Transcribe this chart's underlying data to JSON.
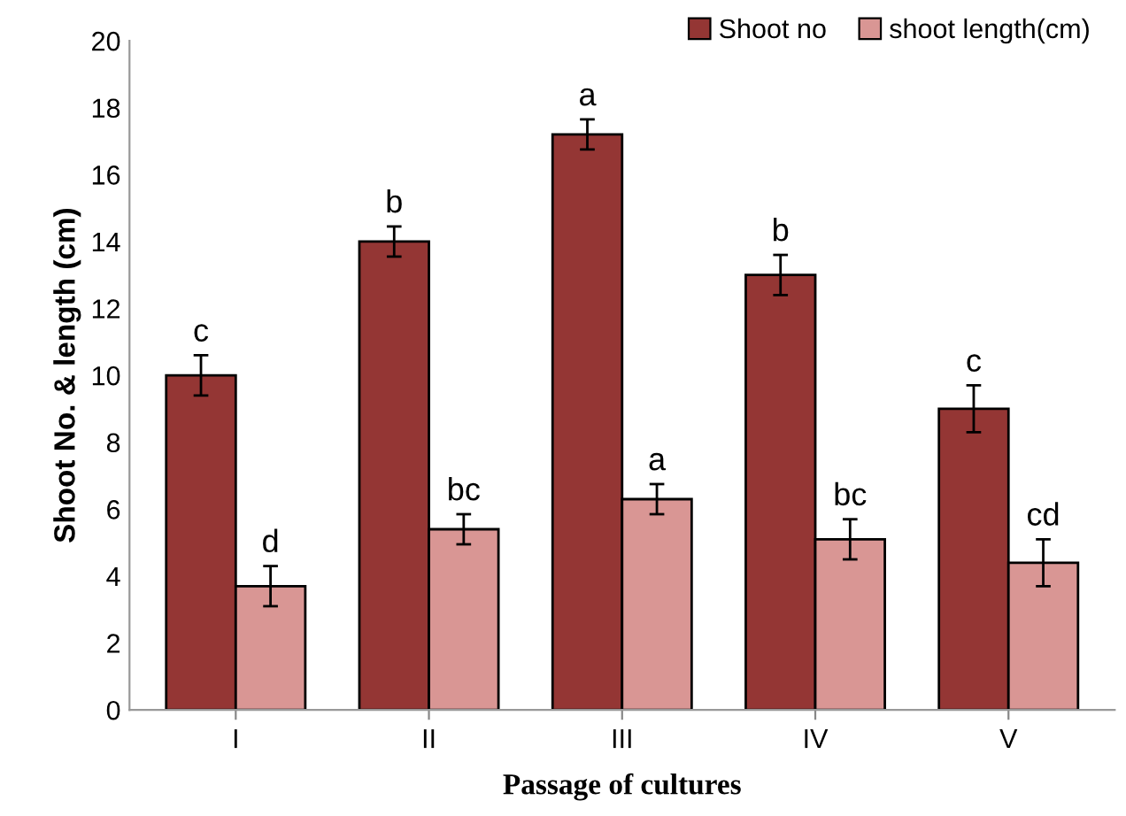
{
  "chart_data": {
    "type": "bar",
    "xlabel": "Passage of cultures",
    "ylabel": "Shoot No. & length (cm)",
    "categories": [
      "I",
      "II",
      "III",
      "IV",
      "V"
    ],
    "series": [
      {
        "name": "Shoot no",
        "color": "#943634",
        "values": [
          10,
          14,
          17.2,
          13,
          9
        ],
        "errors": [
          0.6,
          0.45,
          0.45,
          0.6,
          0.7
        ]
      },
      {
        "name": "shoot length(cm)",
        "color": "#d99694",
        "values": [
          3.7,
          5.4,
          6.3,
          5.1,
          4.4
        ],
        "errors": [
          0.6,
          0.45,
          0.45,
          0.6,
          0.7
        ]
      }
    ],
    "annotations": [
      "c",
      "b",
      "a",
      "b",
      "c",
      "d",
      "bc",
      "a",
      "bc",
      "cd"
    ],
    "ylim": [
      0,
      20
    ],
    "yticks": [
      0,
      2,
      4,
      6,
      8,
      10,
      12,
      14,
      16,
      18,
      20
    ],
    "grid": false,
    "legend": "top right"
  }
}
